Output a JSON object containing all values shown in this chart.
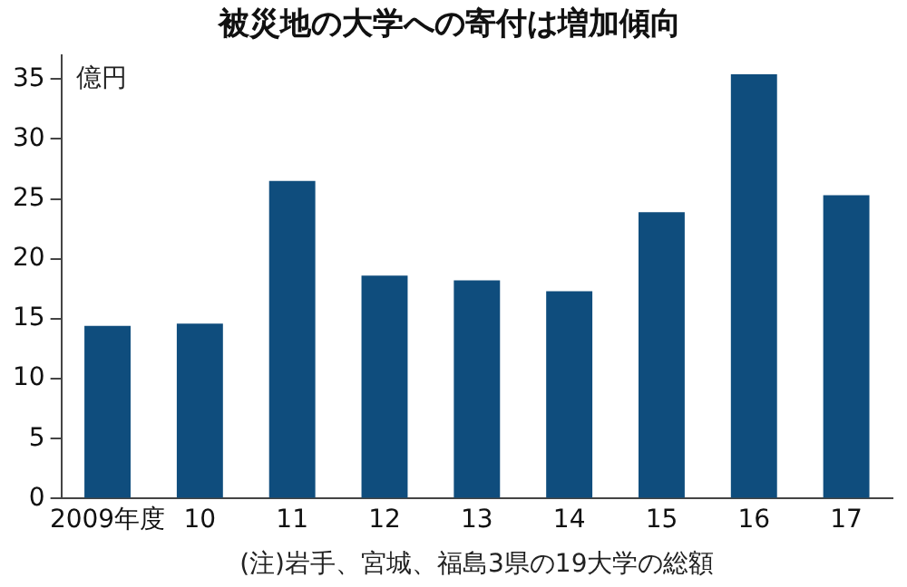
{
  "chart_data": {
    "type": "bar",
    "title": "被災地の大学への寄付は増加傾向",
    "ylabel": "億円",
    "categories": [
      "2009年度",
      "10",
      "11",
      "12",
      "13",
      "14",
      "15",
      "16",
      "17"
    ],
    "values": [
      14.4,
      14.6,
      26.5,
      18.6,
      18.2,
      17.3,
      23.9,
      35.4,
      25.3
    ],
    "color": "#0f4d7d",
    "ylim": [
      0,
      37
    ],
    "yticks": [
      0,
      5,
      10,
      15,
      20,
      25,
      30,
      35
    ],
    "grid": false,
    "legend": false,
    "annotations": [
      "(注)岩手、宮城、福島3県の19大学の総額"
    ]
  }
}
